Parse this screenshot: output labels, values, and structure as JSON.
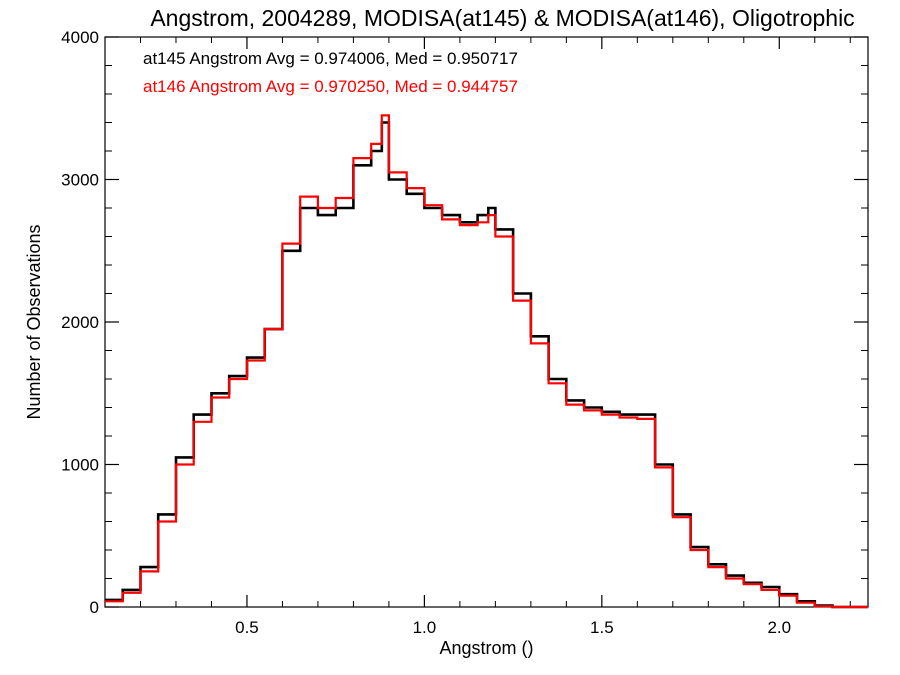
{
  "chart_data": {
    "type": "line",
    "title": "Angstrom, 2004289, MODISA(at145) & MODISA(at146), Oligotrophic",
    "xlabel": "Angstrom ()",
    "ylabel": "Number of Observations",
    "xlim": [
      0.1,
      2.25
    ],
    "ylim": [
      0,
      4000
    ],
    "x_ticks": [
      0.5,
      1.0,
      1.5,
      2.0
    ],
    "x_tick_labels": [
      "0.5",
      "1.0",
      "1.5",
      "2.0"
    ],
    "y_ticks": [
      0,
      1000,
      2000,
      3000,
      4000
    ],
    "y_tick_labels": [
      "0",
      "1000",
      "2000",
      "3000",
      "4000"
    ],
    "grid": false,
    "legend_position": "top-left",
    "step": "histogram",
    "x": [
      0.1,
      0.15,
      0.2,
      0.25,
      0.3,
      0.35,
      0.4,
      0.45,
      0.5,
      0.55,
      0.6,
      0.65,
      0.7,
      0.75,
      0.8,
      0.85,
      0.88,
      0.9,
      0.95,
      1.0,
      1.05,
      1.1,
      1.15,
      1.18,
      1.2,
      1.25,
      1.3,
      1.35,
      1.4,
      1.45,
      1.5,
      1.55,
      1.6,
      1.65,
      1.7,
      1.75,
      1.8,
      1.85,
      1.9,
      1.95,
      2.0,
      2.05,
      2.1,
      2.15,
      2.2,
      2.25
    ],
    "series": [
      {
        "name": "at145",
        "color": "#000000",
        "values": [
          50,
          120,
          280,
          650,
          1050,
          1350,
          1500,
          1620,
          1750,
          1950,
          2500,
          2800,
          2750,
          2800,
          3100,
          3200,
          3400,
          3000,
          2900,
          2800,
          2750,
          2700,
          2750,
          2800,
          2650,
          2200,
          1900,
          1600,
          1450,
          1400,
          1370,
          1350,
          1350,
          1000,
          650,
          420,
          300,
          220,
          170,
          140,
          90,
          40,
          10,
          0,
          0,
          0
        ]
      },
      {
        "name": "at146",
        "color": "#ff0000",
        "values": [
          40,
          100,
          250,
          600,
          1000,
          1300,
          1470,
          1600,
          1730,
          1950,
          2550,
          2880,
          2800,
          2870,
          3150,
          3250,
          3450,
          3050,
          2940,
          2820,
          2720,
          2680,
          2700,
          2750,
          2600,
          2150,
          1850,
          1570,
          1420,
          1380,
          1350,
          1330,
          1320,
          980,
          630,
          400,
          280,
          200,
          160,
          120,
          80,
          30,
          5,
          0,
          0,
          0
        ]
      }
    ],
    "annotations": [
      {
        "text": "at145 Angstrom Avg = 0.974006, Med = 0.950717",
        "color": "#000000"
      },
      {
        "text": "at146 Angstrom Avg = 0.970250, Med = 0.944757",
        "color": "#ff0000"
      }
    ]
  }
}
